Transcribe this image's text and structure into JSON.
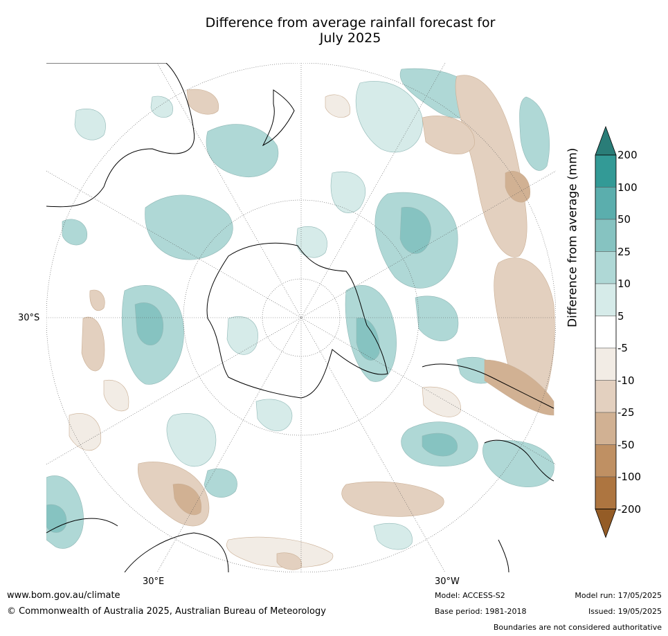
{
  "title_line1": "Difference from average rainfall forecast for",
  "title_line2": "July 2025",
  "map": {
    "lat_label": "30°S",
    "lon_label_left": "30°E",
    "lon_label_right": "30°W"
  },
  "colorbar": {
    "title": "Difference from average (mm)",
    "ticks": [
      "200",
      "100",
      "50",
      "25",
      "10",
      "5",
      "-5",
      "-10",
      "-25",
      "-50",
      "-100",
      "-200"
    ],
    "colors": [
      "#2a7d78",
      "#339a96",
      "#5baead",
      "#86c3c1",
      "#afd8d6",
      "#d6ebe9",
      "#ffffff",
      "#f2ece5",
      "#e3d0bf",
      "#d1b193",
      "#bf9063",
      "#ad7540",
      "#945c26"
    ]
  },
  "footer": {
    "website": "www.bom.gov.au/climate",
    "copyright": "© Commonwealth of Australia 2025, Australian Bureau of Meteorology",
    "model": "Model: ACCESS-S2",
    "base_period": "Base period: 1981-2018",
    "model_run": "Model run: 17/05/2025",
    "issued": "Issued: 19/05/2025",
    "disclaimer": "Boundaries are not considered authoritative"
  }
}
